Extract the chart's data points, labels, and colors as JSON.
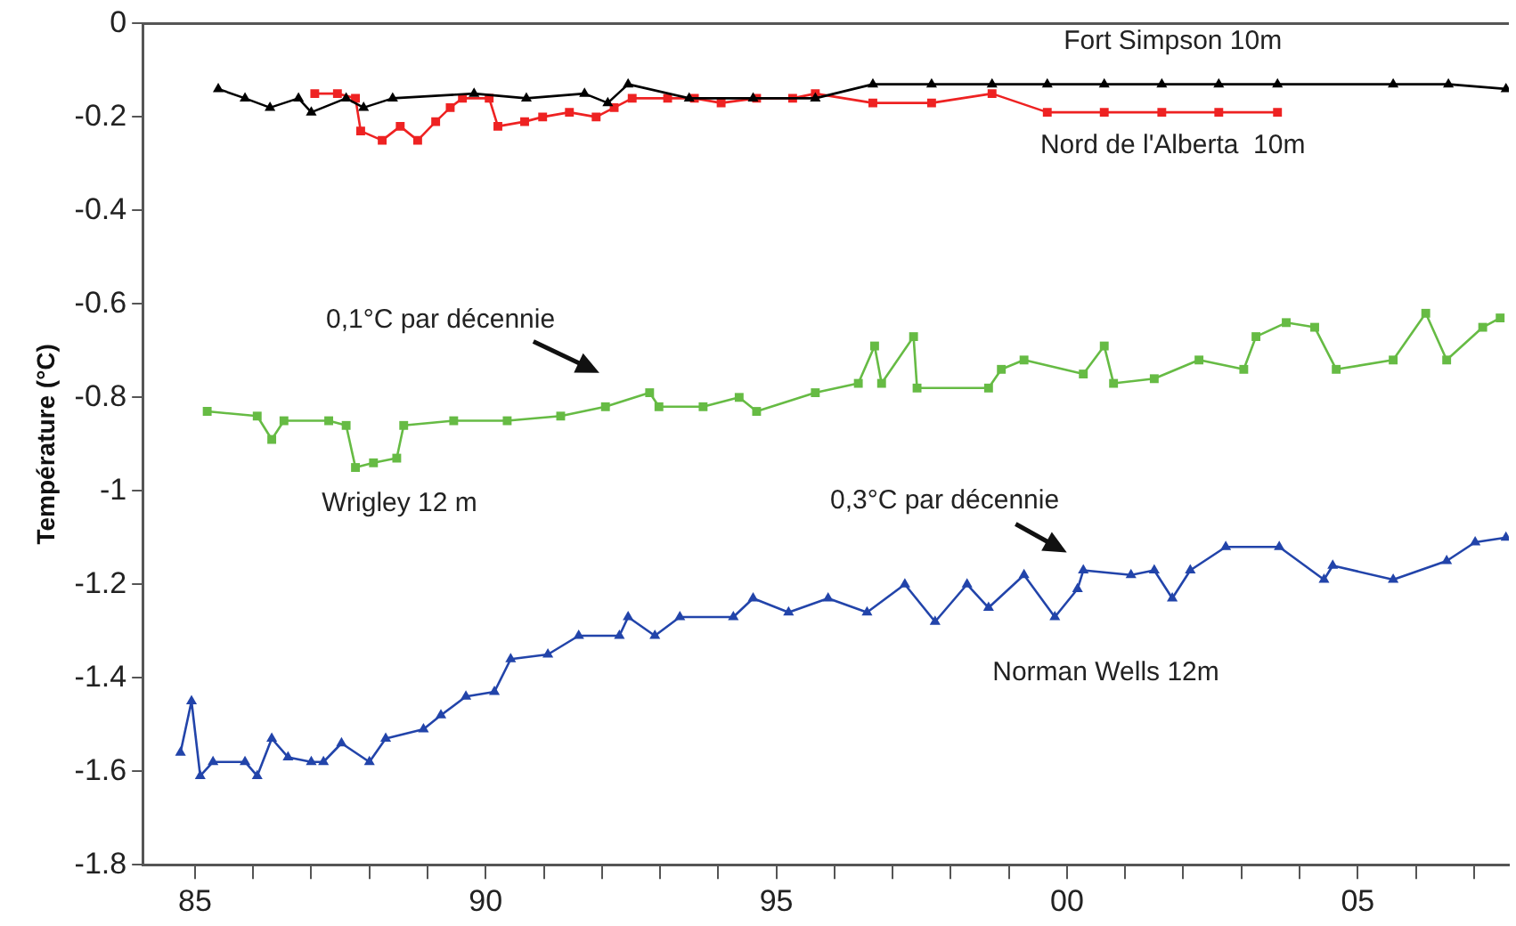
{
  "chart_data": {
    "type": "line",
    "ylabel": "Température (°C)",
    "xlim": [
      1984.1,
      2007.6
    ],
    "xticks": [
      {
        "value": 1985,
        "label": "85"
      },
      {
        "value": 1986,
        "label": null
      },
      {
        "value": 1987,
        "label": null
      },
      {
        "value": 1988,
        "label": null
      },
      {
        "value": 1989,
        "label": null
      },
      {
        "value": 1990,
        "label": "90"
      },
      {
        "value": 1991,
        "label": null
      },
      {
        "value": 1992,
        "label": null
      },
      {
        "value": 1993,
        "label": null
      },
      {
        "value": 1994,
        "label": null
      },
      {
        "value": 1995,
        "label": "95"
      },
      {
        "value": 1996,
        "label": null
      },
      {
        "value": 1997,
        "label": null
      },
      {
        "value": 1998,
        "label": null
      },
      {
        "value": 1999,
        "label": null
      },
      {
        "value": 2000,
        "label": "00"
      },
      {
        "value": 2001,
        "label": null
      },
      {
        "value": 2002,
        "label": null
      },
      {
        "value": 2003,
        "label": null
      },
      {
        "value": 2004,
        "label": null
      },
      {
        "value": 2005,
        "label": "05"
      },
      {
        "value": 2006,
        "label": null
      },
      {
        "value": 2007,
        "label": null
      }
    ],
    "ylim": [
      -1.8,
      0
    ],
    "yticks": [
      0,
      -0.2,
      -0.4,
      -0.6,
      -0.8,
      -1,
      -1.2,
      -1.4,
      -1.6,
      -1.8
    ],
    "grid": false,
    "legend": false,
    "ref_lines": [
      {
        "axis": "y",
        "value": 0,
        "color": "#555555"
      }
    ],
    "annotations": [
      "0,1°C par décennie",
      "0,3°C par décennie"
    ],
    "series": [
      {
        "name": "Fort Simpson 10m",
        "color": "#000000",
        "marker": "triangle",
        "x": [
          1985.4,
          1985.86,
          1986.29,
          1986.78,
          1987.0,
          1987.6,
          1987.9,
          1988.4,
          1989.8,
          1990.7,
          1991.7,
          1992.1,
          1992.45,
          1993.5,
          1994.6,
          1995.67,
          1996.66,
          1997.67,
          1998.71,
          1999.66,
          2000.64,
          2001.63,
          2002.61,
          2003.62,
          2005.61,
          2006.56,
          2007.55
        ],
        "values": [
          -0.14,
          -0.16,
          -0.18,
          -0.16,
          -0.19,
          -0.16,
          -0.18,
          -0.16,
          -0.15,
          -0.16,
          -0.15,
          -0.17,
          -0.13,
          -0.16,
          -0.16,
          -0.16,
          -0.13,
          -0.13,
          -0.13,
          -0.13,
          -0.13,
          -0.13,
          -0.13,
          -0.13,
          -0.13,
          -0.13,
          -0.14
        ]
      },
      {
        "name": "Nord de l'Alberta  10m",
        "color": "#ee2222",
        "marker": "square",
        "x": [
          1987.06,
          1987.45,
          1987.76,
          1987.85,
          1988.22,
          1988.53,
          1988.83,
          1989.14,
          1989.39,
          1989.6,
          1990.06,
          1990.21,
          1990.67,
          1990.98,
          1991.44,
          1991.9,
          1992.21,
          1992.52,
          1993.13,
          1993.59,
          1994.05,
          1994.66,
          1995.28,
          1995.67,
          1996.66,
          1997.67,
          1998.71,
          1999.66,
          2000.64,
          2001.63,
          2002.61,
          2003.62
        ],
        "values": [
          -0.15,
          -0.15,
          -0.16,
          -0.23,
          -0.25,
          -0.22,
          -0.25,
          -0.21,
          -0.18,
          -0.16,
          -0.16,
          -0.22,
          -0.21,
          -0.2,
          -0.19,
          -0.2,
          -0.18,
          -0.16,
          -0.16,
          -0.16,
          -0.17,
          -0.16,
          -0.16,
          -0.15,
          -0.17,
          -0.17,
          -0.15,
          -0.19,
          -0.19,
          -0.19,
          -0.19,
          -0.19
        ]
      },
      {
        "name": "Wrigley 12 m",
        "color": "#66bb44",
        "marker": "square",
        "x": [
          1985.21,
          1986.07,
          1986.32,
          1986.53,
          1987.3,
          1987.6,
          1987.76,
          1988.07,
          1988.47,
          1988.59,
          1989.45,
          1990.37,
          1991.29,
          1992.06,
          1992.82,
          1992.98,
          1993.74,
          1994.36,
          1994.66,
          1995.67,
          1996.41,
          1996.69,
          1996.81,
          1997.36,
          1997.42,
          1998.65,
          1998.87,
          1999.26,
          2000.28,
          2000.64,
          2000.8,
          2001.5,
          2002.27,
          2003.04,
          2003.25,
          2003.77,
          2004.26,
          2004.63,
          2005.61,
          2006.17,
          2006.53,
          2007.15,
          2007.45
        ],
        "values": [
          -0.83,
          -0.84,
          -0.89,
          -0.85,
          -0.85,
          -0.86,
          -0.95,
          -0.94,
          -0.93,
          -0.86,
          -0.85,
          -0.85,
          -0.84,
          -0.82,
          -0.79,
          -0.82,
          -0.82,
          -0.8,
          -0.83,
          -0.79,
          -0.77,
          -0.69,
          -0.77,
          -0.67,
          -0.78,
          -0.78,
          -0.74,
          -0.72,
          -0.75,
          -0.69,
          -0.77,
          -0.76,
          -0.72,
          -0.74,
          -0.67,
          -0.64,
          -0.65,
          -0.74,
          -0.72,
          -0.62,
          -0.72,
          -0.65,
          -0.63
        ]
      },
      {
        "name": "Norman Wells 12m",
        "color": "#2244aa",
        "marker": "triangle",
        "x": [
          1984.75,
          1984.94,
          1985.09,
          1985.31,
          1985.86,
          1986.07,
          1986.32,
          1986.6,
          1987.0,
          1987.21,
          1987.52,
          1988.0,
          1988.28,
          1988.93,
          1989.23,
          1989.66,
          1990.15,
          1990.43,
          1991.07,
          1991.6,
          1992.3,
          1992.45,
          1992.91,
          1993.34,
          1994.26,
          1994.6,
          1995.21,
          1995.89,
          1996.56,
          1997.21,
          1997.73,
          1998.28,
          1998.65,
          1999.26,
          1999.79,
          2000.18,
          2000.28,
          2001.1,
          2001.5,
          2001.81,
          2002.12,
          2002.73,
          2003.65,
          2004.42,
          2004.57,
          2005.61,
          2006.53,
          2007.02,
          2007.55
        ],
        "values": [
          -1.56,
          -1.45,
          -1.61,
          -1.58,
          -1.58,
          -1.61,
          -1.53,
          -1.57,
          -1.58,
          -1.58,
          -1.54,
          -1.58,
          -1.53,
          -1.51,
          -1.48,
          -1.44,
          -1.43,
          -1.36,
          -1.35,
          -1.31,
          -1.31,
          -1.27,
          -1.31,
          -1.27,
          -1.27,
          -1.23,
          -1.26,
          -1.23,
          -1.26,
          -1.2,
          -1.28,
          -1.2,
          -1.25,
          -1.18,
          -1.27,
          -1.21,
          -1.17,
          -1.18,
          -1.17,
          -1.23,
          -1.17,
          -1.12,
          -1.12,
          -1.19,
          -1.16,
          -1.19,
          -1.15,
          -1.11,
          -1.1
        ]
      }
    ]
  }
}
